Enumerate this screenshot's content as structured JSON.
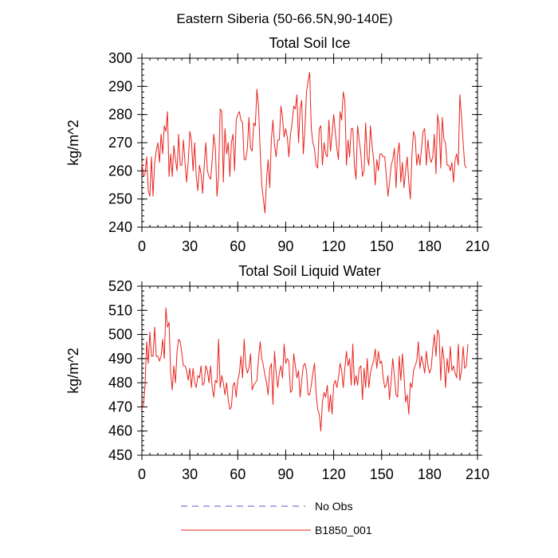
{
  "figure_title": "Eastern Siberia (50-66.5N,90-140E)",
  "legend": {
    "items": [
      {
        "label": "No Obs",
        "color": "#5b5bd6",
        "style": "dashed"
      },
      {
        "label": "B1850_001",
        "color": "#e8231f",
        "style": "solid"
      }
    ]
  },
  "chart_data": [
    {
      "type": "line",
      "title": "Total Soil Ice",
      "xlabel": "",
      "ylabel": "kg/m^2",
      "xlim": [
        0,
        210
      ],
      "ylim": [
        240,
        300
      ],
      "xticks": [
        0,
        30,
        60,
        90,
        120,
        150,
        180,
        210
      ],
      "yticks": [
        240,
        250,
        260,
        270,
        280,
        290,
        300
      ],
      "series": [
        {
          "name": "B1850_001",
          "color": "#e8231f",
          "x_start": 0,
          "x_step": 1,
          "values": [
            263,
            258,
            259,
            265,
            253,
            251,
            265,
            251,
            263,
            267,
            270,
            263,
            273,
            266,
            276,
            274,
            281,
            258,
            266,
            258,
            269,
            264,
            260,
            273,
            262,
            262,
            271,
            263,
            256,
            263,
            274,
            271,
            260,
            270,
            258,
            253,
            262,
            259,
            252,
            262,
            270,
            260,
            258,
            257,
            264,
            273,
            268,
            251,
            258,
            282,
            281,
            256,
            275,
            266,
            270,
            258,
            270,
            273,
            260,
            278,
            280,
            281,
            278,
            277,
            264,
            264,
            268,
            279,
            268,
            267,
            277,
            276,
            289,
            283,
            267,
            255,
            250,
            245,
            257,
            264,
            254,
            271,
            278,
            269,
            265,
            271,
            271,
            283,
            279,
            272,
            275,
            272,
            265,
            273,
            277,
            283,
            282,
            287,
            270,
            282,
            285,
            266,
            275,
            288,
            292,
            295,
            275,
            270,
            268,
            262,
            261,
            275,
            276,
            262,
            270,
            266,
            265,
            278,
            267,
            273,
            280,
            274,
            268,
            264,
            281,
            278,
            288,
            285,
            262,
            271,
            265,
            275,
            275,
            262,
            257,
            276,
            271,
            266,
            258,
            260,
            277,
            265,
            262,
            276,
            269,
            264,
            255,
            264,
            260,
            266,
            266,
            265,
            265,
            258,
            251,
            256,
            262,
            264,
            268,
            254,
            266,
            270,
            256,
            263,
            254,
            260,
            265,
            256,
            250,
            266,
            274,
            272,
            262,
            266,
            262,
            268,
            274,
            275,
            262,
            271,
            265,
            263,
            265,
            273,
            259,
            280,
            276,
            261,
            279,
            271,
            270,
            262,
            262,
            260,
            263,
            256,
            264,
            266,
            262,
            287,
            279,
            270,
            262,
            261
          ]
        }
      ]
    },
    {
      "type": "line",
      "title": "Total Soil Liquid Water",
      "xlabel": "",
      "ylabel": "kg/m^2",
      "xlim": [
        0,
        210
      ],
      "ylim": [
        450,
        520
      ],
      "xticks": [
        0,
        30,
        60,
        90,
        120,
        150,
        180,
        210
      ],
      "yticks": [
        450,
        460,
        470,
        480,
        490,
        500,
        510,
        520
      ],
      "series": [
        {
          "name": "B1850_001",
          "color": "#e8231f",
          "x_start": 0,
          "x_step": 1,
          "values": [
            469,
            471,
            479,
            497,
            488,
            501,
            491,
            491,
            503,
            491,
            491,
            489,
            491,
            498,
            490,
            511,
            503,
            505,
            484,
            477,
            487,
            480,
            493,
            498,
            497,
            492,
            487,
            487,
            485,
            481,
            486,
            478,
            486,
            480,
            478,
            483,
            482,
            487,
            479,
            480,
            487,
            485,
            480,
            487,
            478,
            474,
            481,
            480,
            498,
            478,
            483,
            480,
            475,
            480,
            473,
            469,
            470,
            479,
            480,
            474,
            481,
            484,
            491,
            482,
            498,
            487,
            484,
            486,
            492,
            477,
            479,
            480,
            481,
            490,
            497,
            490,
            487,
            483,
            480,
            475,
            486,
            488,
            471,
            493,
            484,
            478,
            484,
            487,
            482,
            496,
            488,
            490,
            489,
            476,
            477,
            492,
            487,
            482,
            485,
            474,
            481,
            487,
            488,
            485,
            475,
            475,
            479,
            484,
            488,
            476,
            469,
            467,
            460,
            472,
            476,
            474,
            479,
            468,
            475,
            467,
            479,
            481,
            478,
            482,
            488,
            485,
            478,
            486,
            493,
            487,
            490,
            479,
            496,
            479,
            483,
            479,
            486,
            487,
            473,
            486,
            478,
            490,
            478,
            484,
            487,
            489,
            494,
            486,
            493,
            488,
            489,
            482,
            478,
            479,
            483,
            473,
            481,
            490,
            483,
            475,
            474,
            491,
            481,
            492,
            483,
            472,
            475,
            467,
            480,
            478,
            485,
            487,
            489,
            497,
            486,
            491,
            488,
            484,
            493,
            487,
            484,
            486,
            494,
            500,
            491,
            502,
            500,
            481,
            495,
            490,
            478,
            490,
            484,
            495,
            485,
            487,
            484,
            482,
            496,
            481,
            485,
            495,
            486,
            487,
            496
          ]
        }
      ]
    }
  ]
}
